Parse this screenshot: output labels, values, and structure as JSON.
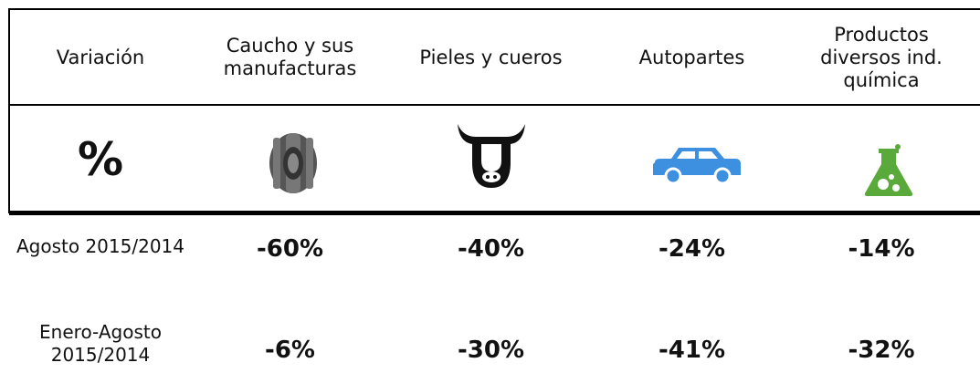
{
  "header": [
    "Variación",
    "Caucho y sus manufacturas",
    "Pieles y cueros",
    "Autopartes",
    "Productos diversos ind. química"
  ],
  "icon_row_symbol": "%",
  "rows": [
    {
      "label": "Agosto 2015/2014",
      "values": [
        "-60%",
        "-40%",
        "-24%",
        "-14%"
      ]
    },
    {
      "label": "Enero-Agosto 2015/2014",
      "values": [
        "-6%",
        "-30%",
        "-41%",
        "-32%"
      ]
    }
  ]
}
